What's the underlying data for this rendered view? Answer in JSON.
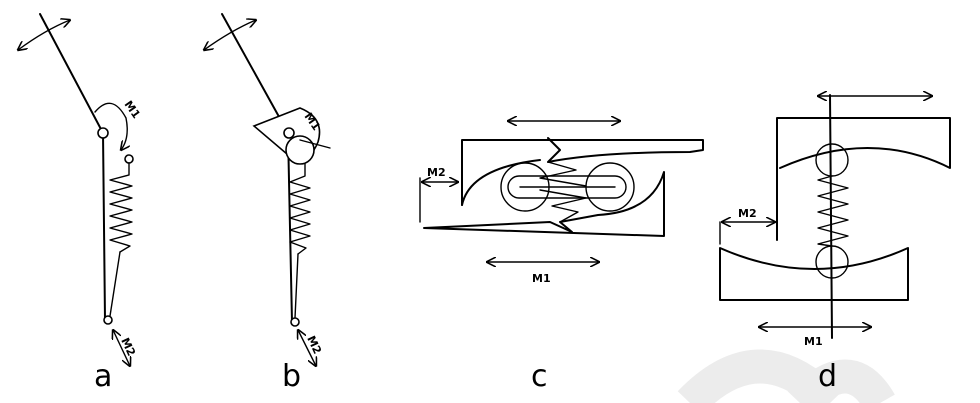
{
  "diagrams": {
    "a": {
      "caption": "a",
      "m1_label": "M1",
      "m2_label": "M2"
    },
    "b": {
      "caption": "b",
      "m1_label": "M1",
      "m2_label": "M2"
    },
    "c": {
      "caption": "c",
      "m1_label": "M1",
      "m2_label": "M2"
    },
    "d": {
      "caption": "d",
      "m1_label": "M1",
      "m2_label": "M2"
    }
  }
}
